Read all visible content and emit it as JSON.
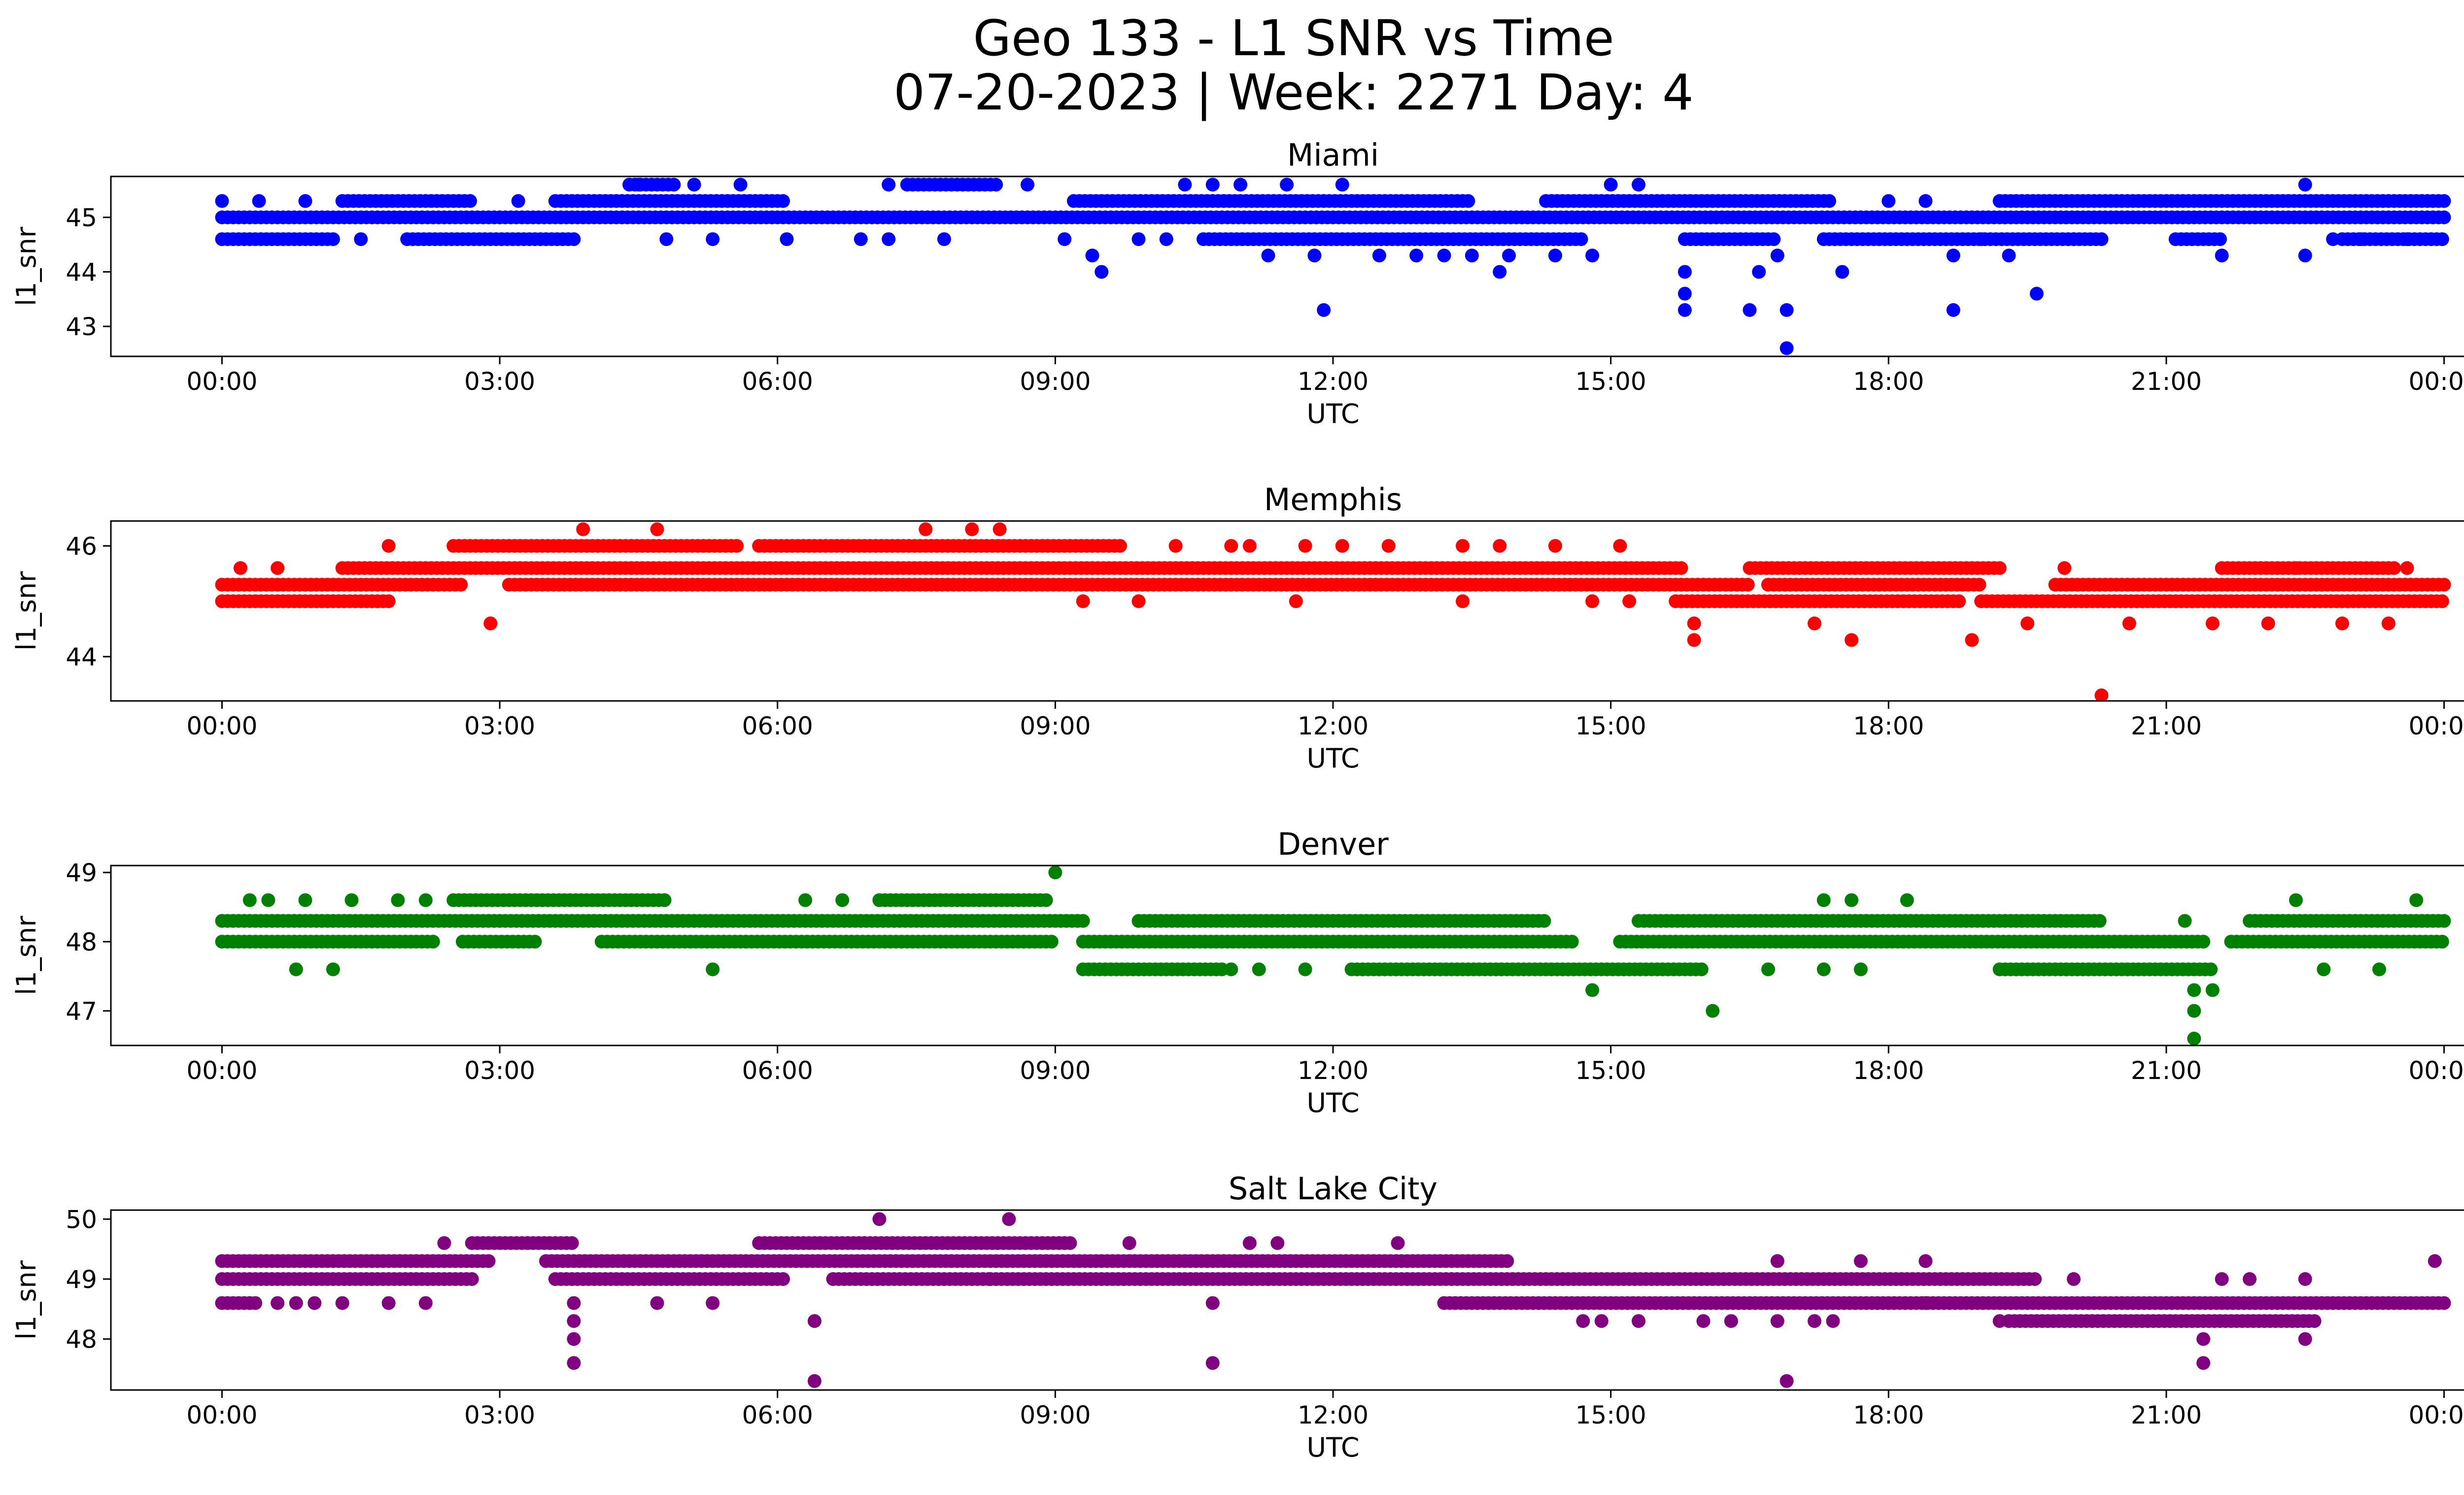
{
  "figure": {
    "title_line1": "Geo 133 - L1 SNR vs Time",
    "title_line2": "07-20-2023 | Week: 2271 Day: 4"
  },
  "chart_data": [
    {
      "type": "scatter",
      "title": "Miami",
      "xlabel": "UTC",
      "ylabel": "l1_snr",
      "color": "#0000ff",
      "xlim_hours": [
        -1.2,
        25.2
      ],
      "ylim": [
        42.45,
        45.75
      ],
      "xticks": [
        "00:00",
        "03:00",
        "06:00",
        "09:00",
        "12:00",
        "15:00",
        "18:00",
        "21:00",
        "00:00"
      ],
      "yticks": [
        43,
        44,
        45
      ],
      "bands": [
        {
          "y": 45.0,
          "ranges": [
            [
              0,
              24
            ]
          ]
        },
        {
          "y": 44.6,
          "ranges": [
            [
              0,
              1.2
            ],
            [
              2.0,
              3.8
            ],
            [
              10.6,
              14.7
            ],
            [
              15.8,
              16.8
            ],
            [
              17.3,
              20.3
            ],
            [
              21.1,
              21.6
            ],
            [
              22.9,
              24
            ]
          ]
        },
        {
          "y": 45.3,
          "ranges": [
            [
              1.3,
              2.7
            ],
            [
              3.6,
              6.1
            ],
            [
              9.2,
              13.5
            ],
            [
              14.3,
              17.4
            ],
            [
              19.2,
              24
            ]
          ]
        },
        {
          "y": 45.6,
          "ranges": [
            [
              4.4,
              4.9
            ],
            [
              7.4,
              8.4
            ]
          ]
        }
      ],
      "points": [
        [
          0.0,
          45.3
        ],
        [
          0.4,
          45.3
        ],
        [
          0.9,
          45.3
        ],
        [
          1.5,
          44.6
        ],
        [
          3.2,
          45.3
        ],
        [
          4.5,
          45.6
        ],
        [
          4.8,
          44.6
        ],
        [
          5.1,
          45.6
        ],
        [
          5.6,
          45.6
        ],
        [
          5.3,
          44.6
        ],
        [
          6.1,
          44.6
        ],
        [
          6.9,
          44.6
        ],
        [
          7.2,
          45.6
        ],
        [
          7.2,
          44.6
        ],
        [
          7.8,
          44.6
        ],
        [
          8.7,
          45.6
        ],
        [
          9.1,
          44.6
        ],
        [
          9.4,
          44.3
        ],
        [
          9.5,
          44.0
        ],
        [
          9.9,
          44.6
        ],
        [
          10.2,
          44.6
        ],
        [
          10.4,
          45.6
        ],
        [
          10.7,
          45.6
        ],
        [
          11.0,
          45.6
        ],
        [
          11.5,
          45.6
        ],
        [
          11.3,
          44.3
        ],
        [
          11.8,
          44.3
        ],
        [
          11.9,
          43.3
        ],
        [
          12.1,
          45.6
        ],
        [
          12.5,
          44.3
        ],
        [
          12.9,
          44.3
        ],
        [
          13.2,
          44.3
        ],
        [
          13.5,
          44.3
        ],
        [
          13.8,
          44.0
        ],
        [
          13.9,
          44.3
        ],
        [
          14.4,
          44.3
        ],
        [
          15.0,
          45.6
        ],
        [
          15.3,
          45.6
        ],
        [
          14.8,
          44.3
        ],
        [
          15.8,
          44.0
        ],
        [
          15.8,
          43.6
        ],
        [
          15.8,
          43.3
        ],
        [
          16.5,
          43.3
        ],
        [
          16.6,
          44.0
        ],
        [
          16.8,
          44.3
        ],
        [
          16.9,
          43.3
        ],
        [
          16.9,
          42.6
        ],
        [
          17.5,
          44.0
        ],
        [
          18.0,
          45.3
        ],
        [
          18.4,
          45.3
        ],
        [
          18.7,
          44.3
        ],
        [
          18.7,
          43.3
        ],
        [
          19.0,
          44.6
        ],
        [
          19.3,
          44.3
        ],
        [
          19.6,
          43.6
        ],
        [
          20.0,
          44.6
        ],
        [
          21.6,
          44.3
        ],
        [
          22.5,
          45.6
        ],
        [
          22.5,
          44.3
        ],
        [
          22.8,
          44.6
        ],
        [
          23.1,
          44.6
        ],
        [
          23.6,
          44.6
        ]
      ]
    },
    {
      "type": "scatter",
      "title": "Memphis",
      "xlabel": "UTC",
      "ylabel": "l1_snr",
      "color": "#ff0000",
      "xlim_hours": [
        -1.2,
        25.2
      ],
      "ylim": [
        43.2,
        46.45
      ],
      "xticks": [
        "00:00",
        "03:00",
        "06:00",
        "09:00",
        "12:00",
        "15:00",
        "18:00",
        "21:00",
        "00:00"
      ],
      "yticks": [
        44,
        46
      ],
      "bands": [
        {
          "y": 45.0,
          "ranges": [
            [
              0,
              1.8
            ],
            [
              15.7,
              18.8
            ],
            [
              19.0,
              24
            ]
          ]
        },
        {
          "y": 45.3,
          "ranges": [
            [
              0,
              2.6
            ],
            [
              3.1,
              16.5
            ],
            [
              16.7,
              19.0
            ],
            [
              19.8,
              24
            ]
          ]
        },
        {
          "y": 45.6,
          "ranges": [
            [
              1.3,
              15.8
            ],
            [
              16.5,
              19.2
            ],
            [
              21.6,
              23.5
            ]
          ]
        },
        {
          "y": 46.0,
          "ranges": [
            [
              2.5,
              5.6
            ],
            [
              5.8,
              9.7
            ]
          ]
        }
      ],
      "points": [
        [
          0.2,
          45.6
        ],
        [
          0.6,
          45.6
        ],
        [
          1.8,
          46.0
        ],
        [
          2.9,
          44.6
        ],
        [
          3.9,
          46.3
        ],
        [
          4.7,
          46.3
        ],
        [
          7.6,
          46.3
        ],
        [
          8.1,
          46.3
        ],
        [
          8.4,
          46.3
        ],
        [
          9.3,
          45.0
        ],
        [
          9.9,
          45.0
        ],
        [
          10.3,
          46.0
        ],
        [
          10.9,
          46.0
        ],
        [
          11.1,
          46.0
        ],
        [
          11.6,
          45.0
        ],
        [
          11.7,
          46.0
        ],
        [
          12.1,
          46.0
        ],
        [
          12.6,
          46.0
        ],
        [
          13.4,
          45.0
        ],
        [
          13.4,
          46.0
        ],
        [
          13.8,
          46.0
        ],
        [
          14.4,
          46.0
        ],
        [
          14.8,
          45.0
        ],
        [
          15.1,
          46.0
        ],
        [
          15.2,
          45.0
        ],
        [
          15.9,
          44.6
        ],
        [
          15.9,
          44.3
        ],
        [
          17.2,
          44.6
        ],
        [
          17.6,
          44.3
        ],
        [
          18.9,
          44.3
        ],
        [
          19.5,
          44.6
        ],
        [
          19.9,
          45.6
        ],
        [
          20.3,
          43.3
        ],
        [
          20.6,
          44.6
        ],
        [
          21.5,
          44.6
        ],
        [
          22.1,
          44.6
        ],
        [
          22.4,
          45.6
        ],
        [
          22.9,
          44.6
        ],
        [
          23.4,
          44.6
        ],
        [
          23.6,
          45.6
        ]
      ]
    },
    {
      "type": "scatter",
      "title": "Denver",
      "xlabel": "UTC",
      "ylabel": "l1_snr",
      "color": "#008000",
      "xlim_hours": [
        -1.2,
        25.2
      ],
      "ylim": [
        46.5,
        49.1
      ],
      "xticks": [
        "00:00",
        "03:00",
        "06:00",
        "09:00",
        "12:00",
        "15:00",
        "18:00",
        "21:00",
        "00:00"
      ],
      "yticks": [
        47,
        48,
        49
      ],
      "bands": [
        {
          "y": 48.0,
          "ranges": [
            [
              0,
              2.3
            ],
            [
              2.6,
              3.4
            ],
            [
              4.1,
              9.0
            ],
            [
              9.3,
              14.6
            ],
            [
              15.1,
              21.4
            ],
            [
              21.7,
              24
            ]
          ]
        },
        {
          "y": 48.3,
          "ranges": [
            [
              0,
              9.3
            ],
            [
              9.9,
              14.3
            ],
            [
              15.3,
              20.3
            ],
            [
              21.9,
              24
            ]
          ]
        },
        {
          "y": 48.6,
          "ranges": [
            [
              2.5,
              4.8
            ],
            [
              7.1,
              8.9
            ]
          ]
        },
        {
          "y": 47.6,
          "ranges": [
            [
              9.3,
              10.8
            ],
            [
              12.2,
              16.0
            ],
            [
              19.2,
              21.5
            ]
          ]
        }
      ],
      "points": [
        [
          0.3,
          48.6
        ],
        [
          0.5,
          48.6
        ],
        [
          0.8,
          47.6
        ],
        [
          0.9,
          48.6
        ],
        [
          1.2,
          47.6
        ],
        [
          1.4,
          48.6
        ],
        [
          1.9,
          48.6
        ],
        [
          2.2,
          48.6
        ],
        [
          5.3,
          47.6
        ],
        [
          6.3,
          48.6
        ],
        [
          6.7,
          48.6
        ],
        [
          9.0,
          49.0
        ],
        [
          10.9,
          47.6
        ],
        [
          11.2,
          47.6
        ],
        [
          11.7,
          47.6
        ],
        [
          14.8,
          47.3
        ],
        [
          16.1,
          47.0
        ],
        [
          16.7,
          47.6
        ],
        [
          17.3,
          48.6
        ],
        [
          17.3,
          47.6
        ],
        [
          17.6,
          48.6
        ],
        [
          17.7,
          47.6
        ],
        [
          18.2,
          48.6
        ],
        [
          21.3,
          47.3
        ],
        [
          21.3,
          47.0
        ],
        [
          21.3,
          46.6
        ],
        [
          21.5,
          47.3
        ],
        [
          21.2,
          48.3
        ],
        [
          22.4,
          48.6
        ],
        [
          22.7,
          47.6
        ],
        [
          23.3,
          47.6
        ],
        [
          23.7,
          48.6
        ]
      ]
    },
    {
      "type": "scatter",
      "title": "Salt Lake City",
      "xlabel": "UTC",
      "ylabel": "l1_snr",
      "color": "#800080",
      "xlim_hours": [
        -1.2,
        25.2
      ],
      "ylim": [
        47.15,
        50.15
      ],
      "xticks": [
        "00:00",
        "03:00",
        "06:00",
        "09:00",
        "12:00",
        "15:00",
        "18:00",
        "21:00",
        "00:00"
      ],
      "yticks": [
        48,
        49,
        50
      ],
      "bands": [
        {
          "y": 49.0,
          "ranges": [
            [
              0,
              2.7
            ],
            [
              3.6,
              6.1
            ],
            [
              6.6,
              8.3
            ],
            [
              8.3,
              19.6
            ]
          ]
        },
        {
          "y": 49.3,
          "ranges": [
            [
              0,
              2.9
            ],
            [
              3.5,
              13.9
            ]
          ]
        },
        {
          "y": 49.6,
          "ranges": [
            [
              2.7,
              3.8
            ],
            [
              5.8,
              9.2
            ]
          ]
        },
        {
          "y": 48.6,
          "ranges": [
            [
              0,
              0.4
            ],
            [
              13.2,
              24
            ]
          ]
        },
        {
          "y": 48.3,
          "ranges": [
            [
              19.3,
              22.6
            ]
          ]
        }
      ],
      "points": [
        [
          0.3,
          48.6
        ],
        [
          0.6,
          48.6
        ],
        [
          0.8,
          48.6
        ],
        [
          1.0,
          48.6
        ],
        [
          1.3,
          48.6
        ],
        [
          1.8,
          48.6
        ],
        [
          2.2,
          48.6
        ],
        [
          2.4,
          49.6
        ],
        [
          3.8,
          48.6
        ],
        [
          3.8,
          48.3
        ],
        [
          3.8,
          48.0
        ],
        [
          3.8,
          47.6
        ],
        [
          4.7,
          48.6
        ],
        [
          5.3,
          48.6
        ],
        [
          6.4,
          48.3
        ],
        [
          6.4,
          47.3
        ],
        [
          7.1,
          50.0
        ],
        [
          8.5,
          50.0
        ],
        [
          8.3,
          49.0
        ],
        [
          9.8,
          49.6
        ],
        [
          10.7,
          47.6
        ],
        [
          10.7,
          48.6
        ],
        [
          11.1,
          49.6
        ],
        [
          11.4,
          49.6
        ],
        [
          12.7,
          49.6
        ],
        [
          14.7,
          48.3
        ],
        [
          14.9,
          48.3
        ],
        [
          15.3,
          48.3
        ],
        [
          16.0,
          48.3
        ],
        [
          16.3,
          48.3
        ],
        [
          16.8,
          49.3
        ],
        [
          16.8,
          48.3
        ],
        [
          16.9,
          47.3
        ],
        [
          17.2,
          48.3
        ],
        [
          17.4,
          48.3
        ],
        [
          17.7,
          49.3
        ],
        [
          18.4,
          49.3
        ],
        [
          18.4,
          48.6
        ],
        [
          19.2,
          48.3
        ],
        [
          20.0,
          49.0
        ],
        [
          21.4,
          48.0
        ],
        [
          21.4,
          47.6
        ],
        [
          21.6,
          49.0
        ],
        [
          21.9,
          49.0
        ],
        [
          22.5,
          48.0
        ],
        [
          22.5,
          49.0
        ],
        [
          23.9,
          49.3
        ]
      ]
    }
  ]
}
